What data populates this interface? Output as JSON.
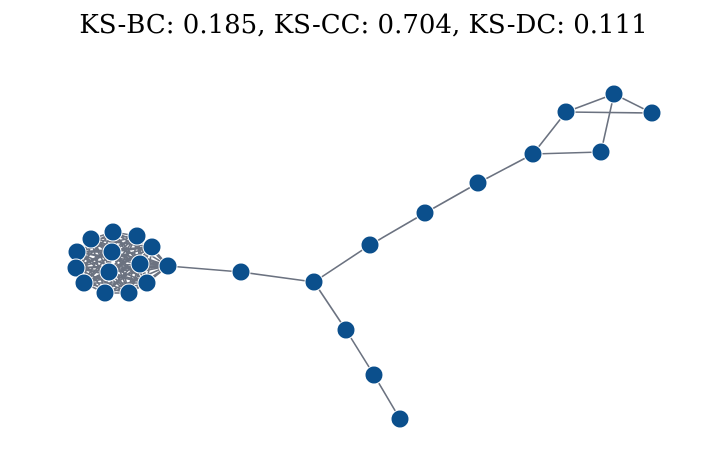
{
  "figure": {
    "title": "KS-BC: 0.185, KS-CC: 0.704, KS-DC: 0.111",
    "node_color": "#0b4f8c",
    "edge_color": "#6b7280",
    "node_count": 28
  }
}
